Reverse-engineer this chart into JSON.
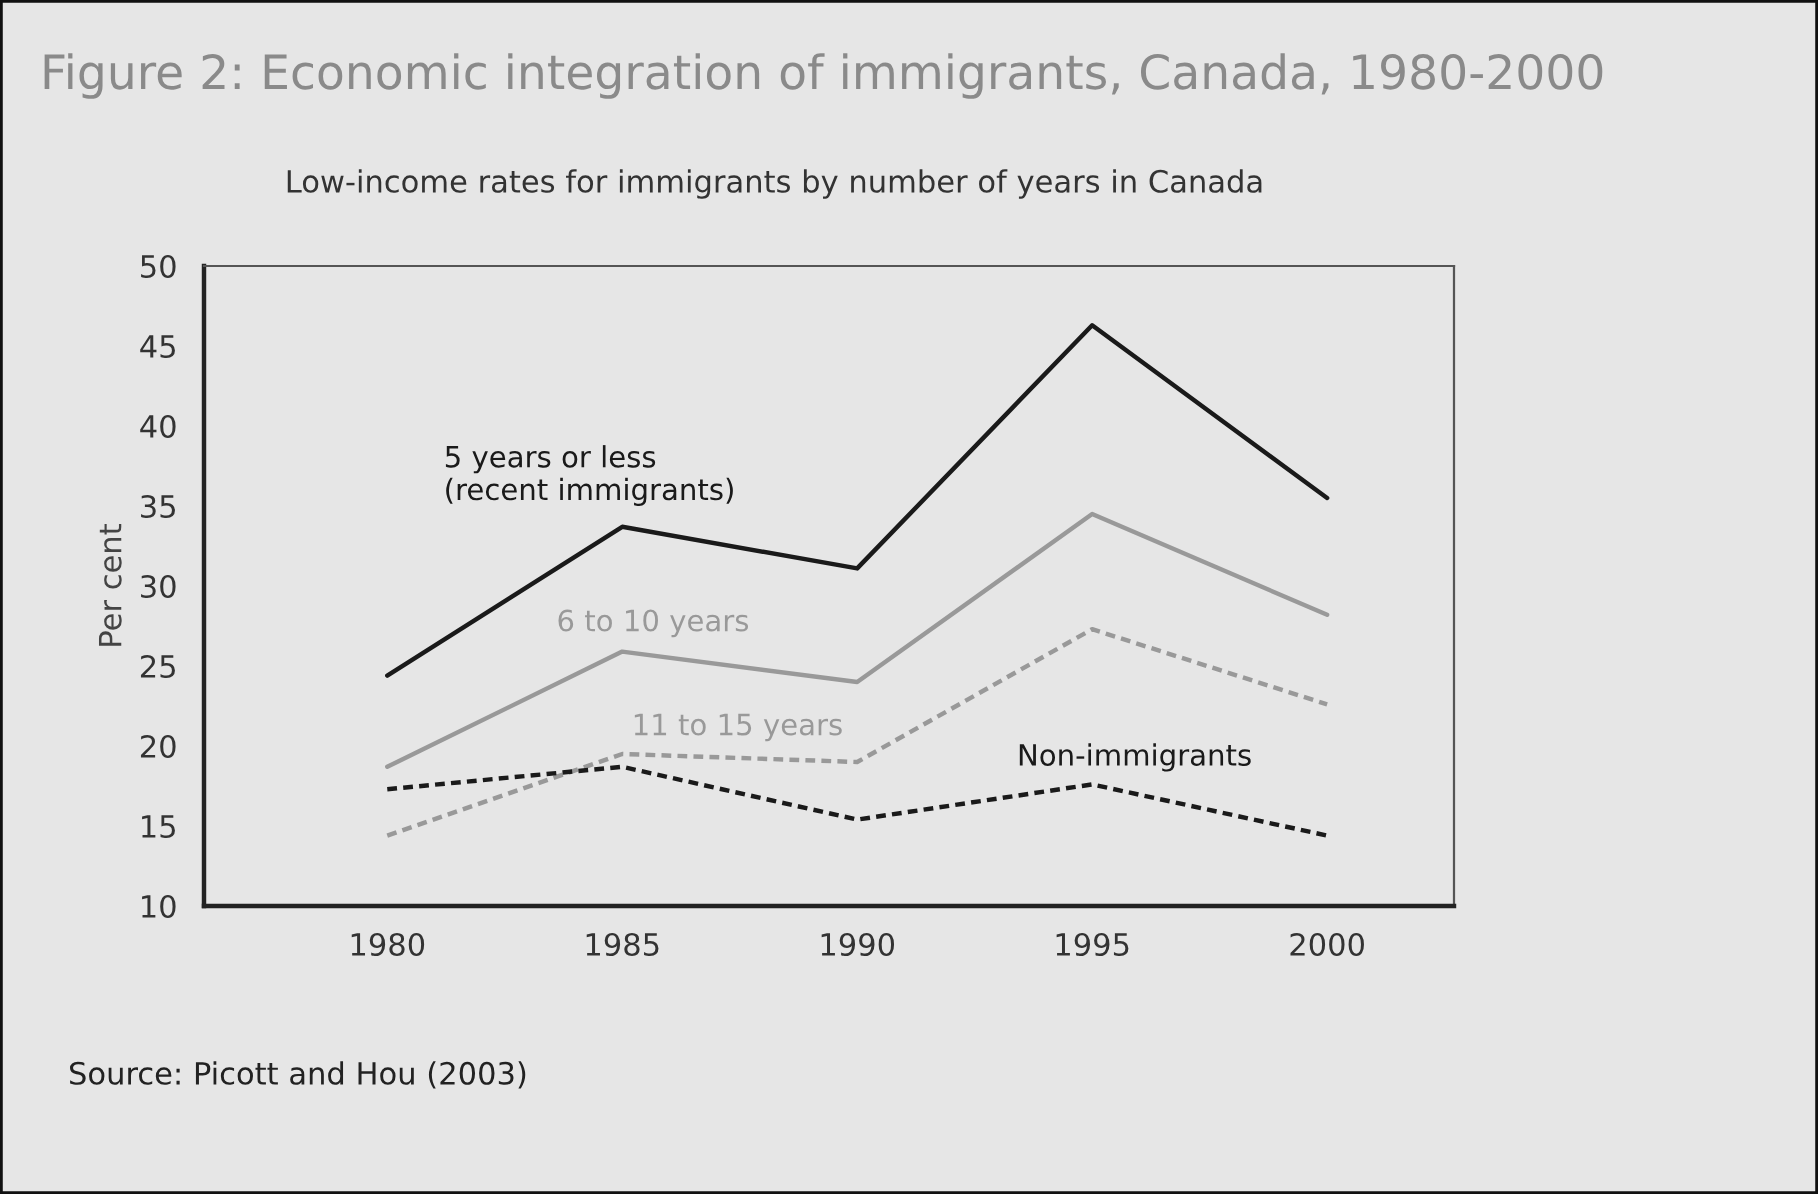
{
  "chart_data": {
    "type": "line",
    "title": "Figure 2: Economic integration of immigrants, Canada, 1980-2000",
    "subtitle": "Low-income rates for immigrants by number of years in Canada",
    "ylabel": "Per cent",
    "x": [
      1980,
      1985,
      1990,
      1995,
      2000
    ],
    "series": [
      {
        "name": "5 years or less\n(recent immigrants)",
        "color": "#1a1a1a",
        "line_style": "solid",
        "values": [
          24.4,
          33.7,
          31.1,
          46.3,
          35.5
        ]
      },
      {
        "name": "6 to 10 years",
        "color": "#999999",
        "line_style": "solid",
        "values": [
          18.7,
          25.9,
          24.0,
          34.5,
          28.2
        ]
      },
      {
        "name": "11 to 15 years",
        "color": "#999999",
        "line_style": "dashed",
        "values": [
          14.4,
          19.5,
          19.0,
          27.3,
          22.6
        ]
      },
      {
        "name": "Non-immigrants",
        "color": "#1a1a1a",
        "line_style": "dashed",
        "values": [
          17.3,
          18.7,
          15.4,
          17.6,
          14.4
        ]
      }
    ],
    "xlim": [
      1976.1,
      2002.7
    ],
    "xticks": [
      1980,
      1985,
      1990,
      1995,
      2000
    ],
    "ylim": [
      10,
      50
    ],
    "yticks": [
      10,
      15,
      20,
      25,
      30,
      35,
      40,
      45,
      50
    ],
    "grid": false,
    "legend": false,
    "annotations": [
      "Source: Picott and Hou (2003)"
    ]
  }
}
